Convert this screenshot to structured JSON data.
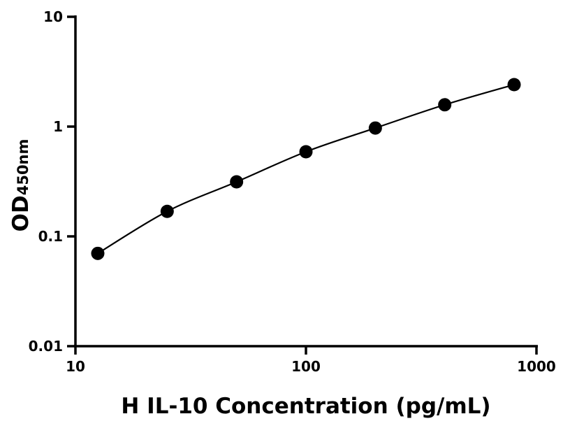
{
  "chart_data": {
    "type": "scatter",
    "title": "",
    "xlabel": "H IL-10 Concentration (pg/mL)",
    "ylabel": {
      "main": "OD",
      "subscript": "450nm"
    },
    "x_scale": "log",
    "y_scale": "log",
    "xlim": [
      10,
      1000
    ],
    "ylim": [
      0.01,
      10
    ],
    "x_ticks": [
      "10",
      "100",
      "1000"
    ],
    "y_ticks": [
      "0.01",
      "0.1",
      "1",
      "10"
    ],
    "grid": false,
    "legend": "none",
    "fit_curve": true,
    "marker_color": "#000000",
    "line_color": "#000000",
    "series": [
      {
        "x": [
          12.5,
          25,
          50,
          100,
          200,
          400,
          800
        ],
        "y": [
          0.07,
          0.169,
          0.314,
          0.59,
          0.97,
          1.58,
          2.41
        ]
      }
    ]
  }
}
